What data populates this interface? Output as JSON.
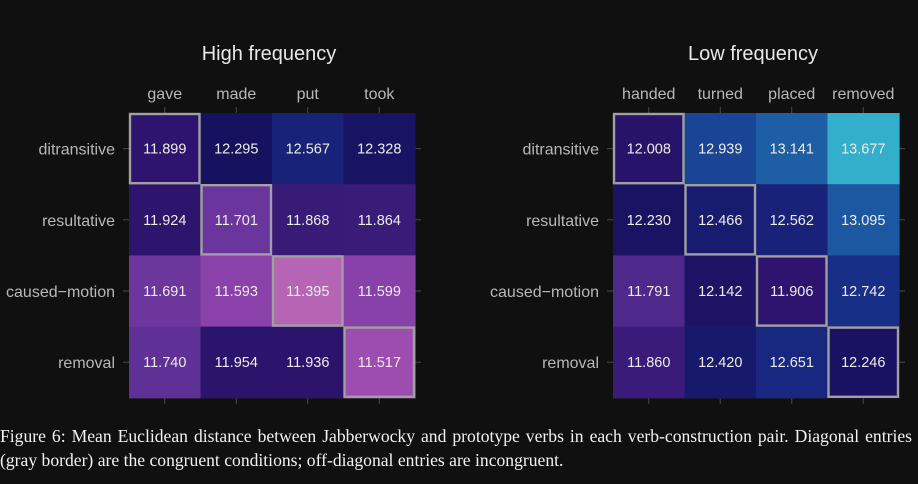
{
  "chart_data": [
    {
      "type": "heatmap",
      "title": "High frequency",
      "x": [
        "gave",
        "made",
        "put",
        "took"
      ],
      "y": [
        "ditransitive",
        "resultative",
        "caused−motion",
        "removal"
      ],
      "values": [
        [
          11.899,
          12.295,
          12.567,
          12.328
        ],
        [
          11.924,
          11.701,
          11.868,
          11.864
        ],
        [
          11.691,
          11.593,
          11.395,
          11.599
        ],
        [
          11.74,
          11.954,
          11.936,
          11.517
        ]
      ],
      "value_labels": [
        [
          "11.899",
          "12.295",
          "12.567",
          "12.328"
        ],
        [
          "11.924",
          "11.701",
          "11.868",
          "11.864"
        ],
        [
          "11.691",
          "11.593",
          "11.395",
          "11.599"
        ],
        [
          "11.740",
          "11.954",
          "11.936",
          "11.517"
        ]
      ],
      "highlight_diagonal": true,
      "highlight_color": "#a0a0a0",
      "grid": false
    },
    {
      "type": "heatmap",
      "title": "Low frequency",
      "x": [
        "handed",
        "turned",
        "placed",
        "removed"
      ],
      "y": [
        "ditransitive",
        "resultative",
        "caused−motion",
        "removal"
      ],
      "values": [
        [
          12.008,
          12.939,
          13.141,
          13.677
        ],
        [
          12.23,
          12.466,
          12.562,
          13.095
        ],
        [
          11.791,
          12.142,
          11.906,
          12.742
        ],
        [
          11.86,
          12.42,
          12.651,
          12.246
        ]
      ],
      "value_labels": [
        [
          "12.008",
          "12.939",
          "13.141",
          "13.677"
        ],
        [
          "12.230",
          "12.466",
          "12.562",
          "13.095"
        ],
        [
          "11.791",
          "12.142",
          "11.906",
          "12.742"
        ],
        [
          "11.860",
          "12.420",
          "12.651",
          "12.246"
        ]
      ],
      "highlight_diagonal": true,
      "highlight_color": "#a0a0a0",
      "grid": false
    }
  ],
  "colors": {
    "background": "#101010",
    "axis_text": "#b8b8b8",
    "title_text": "#e8e8e8",
    "cell_text": "#ececec",
    "tick": "#4a4a4a"
  },
  "caption": "Figure 6: Mean Euclidean distance between Jabberwocky and prototype verbs in each verb-construction pair. Diagonal entries (gray border) are the congruent conditions; off-diagonal entries are incongruent."
}
